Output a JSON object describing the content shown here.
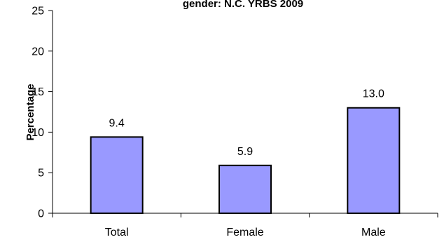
{
  "chart_data": {
    "type": "bar",
    "title": "gender: N.C. YRBS 2009",
    "xlabel": "",
    "ylabel": "Percentage",
    "categories": [
      "Total",
      "Female",
      "Male"
    ],
    "values": [
      9.4,
      5.9,
      13.0
    ],
    "data_labels": [
      "9.4",
      "5.9",
      "13.0"
    ],
    "ylim": [
      0,
      25
    ],
    "yticks": [
      0,
      5,
      10,
      15,
      20,
      25
    ],
    "bar_fill": "#9999ff",
    "bar_stroke": "#000000",
    "grid": false,
    "legend": "none"
  }
}
